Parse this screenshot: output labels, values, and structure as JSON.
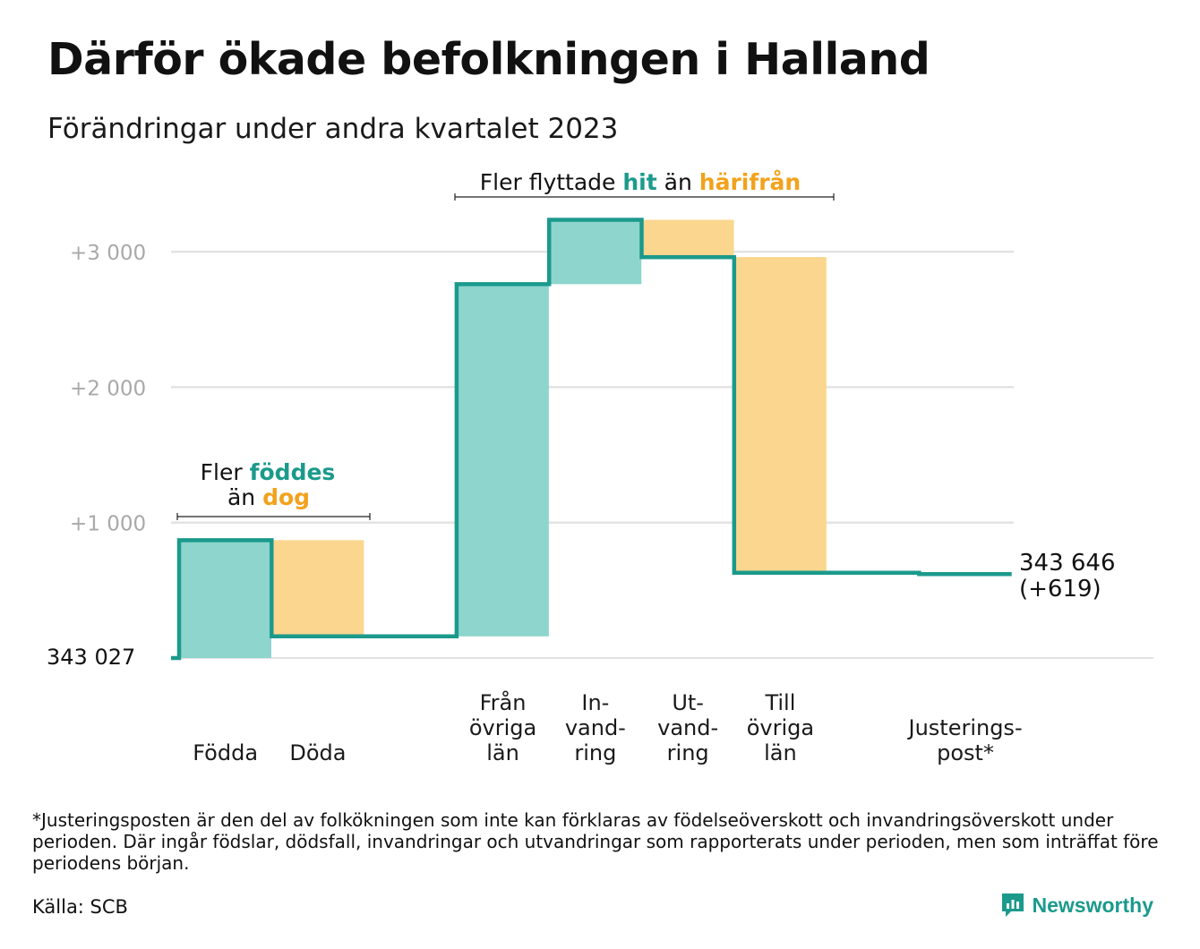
{
  "title": "Därför ökade befolkningen i Halland",
  "subtitle": "Förändringar under andra kvartalet 2023",
  "annotations": {
    "births": {
      "prefix": "Fler",
      "teal": "föddes",
      "mid": "än",
      "orange": "dog"
    },
    "moves": {
      "prefix": "Fler flyttade",
      "teal": "hit",
      "mid": "än",
      "orange": "härifrån"
    }
  },
  "start_label": "343   027",
  "end_label": {
    "line1": "343 646",
    "line2": "(+619)"
  },
  "footnote": "*Justeringsposten är den del av folkökningen som inte kan förklaras av födelseöverskott och invandringsöverskott under perioden. Där ingår födslar, dödsfall, invandringar och utvandringar som rapporterats under perioden, men som inträffat före periodens början.",
  "source": "Källa: SCB",
  "brand": "Newsworthy",
  "colors": {
    "teal_line": "#1b9a8c",
    "teal_fill": "#8dd5cd",
    "orange_fill": "#fad68e",
    "orange_text": "#f2a21d",
    "grid": "#e3e3e3"
  },
  "chart_data": {
    "type": "waterfall",
    "baseline": 343027,
    "final": 343646,
    "net_change": 619,
    "ylim": [
      0,
      3300
    ],
    "yticks": [
      {
        "value": 1000,
        "label": "+1   000"
      },
      {
        "value": 2000,
        "label": "+2   000"
      },
      {
        "value": 3000,
        "label": "+3   000"
      }
    ],
    "steps": [
      {
        "label": [
          "Födda"
        ],
        "change": 870,
        "kind": "in"
      },
      {
        "label": [
          "Döda"
        ],
        "change": -710,
        "kind": "out"
      },
      {
        "label": [
          ""
        ],
        "change": 0,
        "kind": "none"
      },
      {
        "label": [
          "Från",
          "övriga",
          "län"
        ],
        "change": 2600,
        "kind": "in"
      },
      {
        "label": [
          "In-",
          "vand-",
          "ring"
        ],
        "change": 475,
        "kind": "in"
      },
      {
        "label": [
          "Ut-",
          "vand-",
          "ring"
        ],
        "change": -275,
        "kind": "out"
      },
      {
        "label": [
          "Till",
          "övriga",
          "län"
        ],
        "change": -2330,
        "kind": "out"
      },
      {
        "label": [
          ""
        ],
        "change": 0,
        "kind": "none"
      },
      {
        "label": [
          "Justerings-",
          "post*"
        ],
        "change": -11,
        "kind": "adjust"
      }
    ]
  }
}
